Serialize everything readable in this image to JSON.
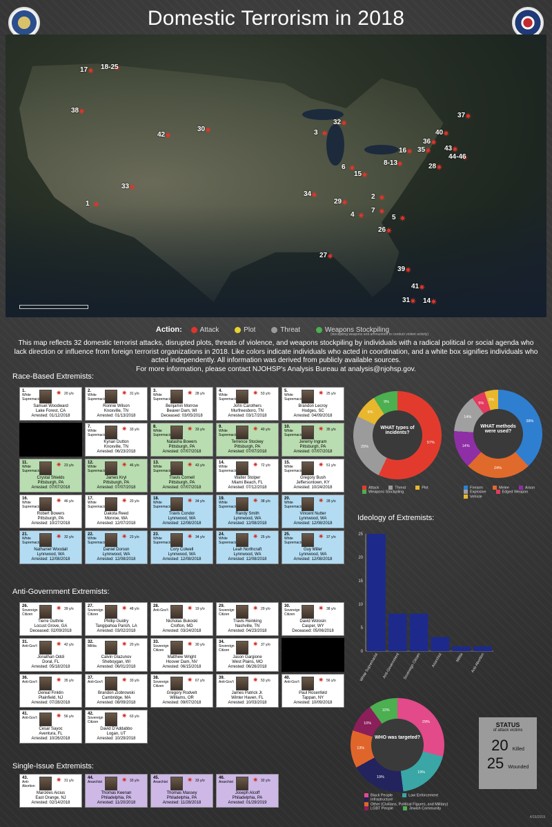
{
  "header": {
    "title": "Domestic Terrorism in 2018"
  },
  "map": {
    "markers": [
      "17",
      "18-25",
      "38",
      "1",
      "42",
      "30",
      "33",
      "3",
      "32",
      "37",
      "40",
      "36",
      "43",
      "35",
      "44-46",
      "28",
      "16",
      "8-13",
      "6",
      "15",
      "34",
      "29",
      "2",
      "4",
      "7",
      "5",
      "26",
      "27",
      "39",
      "41",
      "31",
      "14"
    ]
  },
  "legend": {
    "label": "Action:",
    "items": [
      "Attack",
      "Plot",
      "Threat",
      "Weapons Stockpiling"
    ],
    "note": "(stockpiling weapons and ammunition to conduct violent activity)"
  },
  "description": {
    "text": "This map reflects 32 domestic terrorist attacks, disrupted plots, threats of violence, and weapons stockpiling by individuals with a radical political or social agenda who lack direction or influence from foreign terrorist organizations in 2018. Like colors indicate individuals who acted in coordination, and a white box signifies individuals who acted independently. All information was derived from publicly available sources.",
    "contact": "For more information, please contact NJOHSP's Analysis Bureau at analysis@njohsp.gov."
  },
  "sections": {
    "race": "Race-Based Extremists:",
    "antigov": "Anti-Government Extremists:",
    "single": "Single-Issue Extremists:"
  },
  "cards": [
    {
      "n": "1.",
      "g": "White Supremacist",
      "a": "20 y/o",
      "name": "Samuel Woodward",
      "loc": "Lake Forest, CA",
      "st": "Arrested: 01/12/2018",
      "c": ""
    },
    {
      "n": "2.",
      "g": "White Supremacist",
      "a": "31 y/o",
      "name": "Ronnie Wilson",
      "loc": "Knoxville, TN",
      "st": "Arrested: 01/13/2018",
      "c": ""
    },
    {
      "n": "3.",
      "g": "White Supremacist",
      "a": "28 y/o",
      "name": "Benjamin Morrow",
      "loc": "Beaver Dam, WI",
      "st": "Deceased: 03/05/2018",
      "c": ""
    },
    {
      "n": "4.",
      "g": "White Supremacist",
      "a": "53 y/o",
      "name": "John Carothers",
      "loc": "Murfreesboro, TN",
      "st": "Arrested: 03/17/2018",
      "c": ""
    },
    {
      "n": "5.",
      "g": "White Supremacist",
      "a": "25 y/o",
      "name": "Brandon Lecroy",
      "loc": "Hodges, SC",
      "st": "Arrested: 04/09/2018",
      "c": ""
    },
    {
      "n": "",
      "g": "",
      "a": "",
      "name": "",
      "loc": "",
      "st": "",
      "c": "k"
    },
    {
      "n": "7.",
      "g": "White Supremacist",
      "a": "33 y/o",
      "name": "Kynan Dutton",
      "loc": "Knoxville, TN",
      "st": "Arrested: 06/23/2018",
      "c": ""
    },
    {
      "n": "8.",
      "g": "White Supremacist",
      "a": "33 y/o",
      "name": "Natasha Bowers",
      "loc": "Pittsburgh, PA",
      "st": "Arrested: 07/07/2018",
      "c": "g"
    },
    {
      "n": "9.",
      "g": "White Supremacist",
      "a": "40 y/o",
      "name": "Terrence Stockey",
      "loc": "Pittsburgh, PA",
      "st": "Arrested: 07/07/2018",
      "c": "g"
    },
    {
      "n": "10.",
      "g": "White Supremacist",
      "a": "35 y/o",
      "name": "Jeremy Ingram",
      "loc": "Pittsburgh, PA",
      "st": "Arrested: 07/07/2018",
      "c": "g"
    },
    {
      "n": "11.",
      "g": "White Supremacist",
      "a": "23 y/o",
      "name": "Crystal Shields",
      "loc": "Pittsburgh, PA",
      "st": "Arrested: 07/07/2018",
      "c": "g"
    },
    {
      "n": "12.",
      "g": "White Supremacist",
      "a": "46 y/o",
      "name": "James Kryl",
      "loc": "Pittsburgh, PA",
      "st": "Arrested: 07/07/2018",
      "c": "g"
    },
    {
      "n": "13.",
      "g": "White Supremacist",
      "a": "43 y/o",
      "name": "Travis Cornell",
      "loc": "Pittsburgh, PA",
      "st": "Arrested: 07/07/2018",
      "c": "g"
    },
    {
      "n": "14.",
      "g": "White Supremacist",
      "a": "72 y/o",
      "name": "Walter Stolper",
      "loc": "Miami Beach, FL",
      "st": "Arrested: 07/12/2018",
      "c": ""
    },
    {
      "n": "15.",
      "g": "White Supremacist",
      "a": "51 y/o",
      "name": "Gregory Bush",
      "loc": "Jeffersontown, KY",
      "st": "Arrested: 10/24/2018",
      "c": ""
    },
    {
      "n": "16.",
      "g": "White Supremacist",
      "a": "46 y/o",
      "name": "Robert Bowers",
      "loc": "Pittsburgh, PA",
      "st": "Arrested: 10/27/2018",
      "c": ""
    },
    {
      "n": "17.",
      "g": "White Supremacist",
      "a": "20 y/o",
      "name": "Dakota Reed",
      "loc": "Monroe, WA",
      "st": "Arrested: 12/07/2018",
      "c": ""
    },
    {
      "n": "18.",
      "g": "White Supremacist",
      "a": "34 y/o",
      "name": "Travis Condor",
      "loc": "Lynnwood, WA",
      "st": "Arrested: 12/08/2018",
      "c": "b"
    },
    {
      "n": "19.",
      "g": "White Supremacist",
      "a": "38 y/o",
      "name": "Randy Smith",
      "loc": "Lynnwood, WA",
      "st": "Arrested: 12/08/2018",
      "c": "b"
    },
    {
      "n": "20.",
      "g": "White Supremacist",
      "a": "28 y/o",
      "name": "Vincent Nutter",
      "loc": "Lynnwood, WA",
      "st": "Arrested: 12/08/2018",
      "c": "b"
    },
    {
      "n": "21.",
      "g": "White Supremacist",
      "a": "32 y/o",
      "name": "Nathaniel Woodall",
      "loc": "Lynnwood, WA",
      "st": "Arrested: 12/08/2018",
      "c": "b"
    },
    {
      "n": "22.",
      "g": "White Supremacist",
      "a": "23 y/o",
      "name": "Daniel Dorson",
      "loc": "Lynnwood, WA",
      "st": "Arrested: 12/08/2018",
      "c": "b"
    },
    {
      "n": "23.",
      "g": "White Supremacist",
      "a": "34 y/o",
      "name": "Cory Colwell",
      "loc": "Lynnwood, WA",
      "st": "Arrested: 12/08/2018",
      "c": "b"
    },
    {
      "n": "24.",
      "g": "White Supremacist",
      "a": "25 y/o",
      "name": "Leah Northcraft",
      "loc": "Lynnwood, WA",
      "st": "Arrested: 12/08/2018",
      "c": "b"
    },
    {
      "n": "25.",
      "g": "White Supremacist",
      "a": "37 y/o",
      "name": "Guy Miller",
      "loc": "Lynnwood, WA",
      "st": "Arrested: 12/08/2018",
      "c": "b"
    }
  ],
  "cards2": [
    {
      "n": "26.",
      "g": "Sovereign Citizen",
      "a": "39 y/o",
      "name": "Tierre Guthrie",
      "loc": "Locust Grove, GA",
      "st": "Deceased: 02/09/2018",
      "c": ""
    },
    {
      "n": "27.",
      "g": "Sovereign Citizen",
      "a": "48 y/o",
      "name": "Phillip Guidry",
      "loc": "Tangipahoa Parish, LA",
      "st": "Arrested: 03/02/2018",
      "c": ""
    },
    {
      "n": "28.",
      "g": "Anti-Gov't",
      "a": "19 y/o",
      "name": "Nicholas Bukoski",
      "loc": "Crofton, MD",
      "st": "Arrested: 03/24/2018",
      "c": ""
    },
    {
      "n": "29.",
      "g": "Sovereign Citizen",
      "a": "29 y/o",
      "name": "Travis Reinking",
      "loc": "Nashville, TN",
      "st": "Arrested: 04/23/2018",
      "c": ""
    },
    {
      "n": "30.",
      "g": "Sovereign Citizen",
      "a": "38 y/o",
      "name": "David Wolosin",
      "loc": "Casper, WY",
      "st": "Deceased: 05/06/2018",
      "c": ""
    },
    {
      "n": "31.",
      "g": "Anti-Gov't",
      "a": "42 y/o",
      "name": "Jonathan Oddi",
      "loc": "Doral, FL",
      "st": "Arrested: 05/18/2018",
      "c": ""
    },
    {
      "n": "32.",
      "g": "Militia",
      "a": "20 y/o",
      "name": "Calvin Glazunov",
      "loc": "Sheboygan, WI",
      "st": "Arrested: 06/01/2018",
      "c": ""
    },
    {
      "n": "33.",
      "g": "Sovereign Citizen",
      "a": "30 y/o",
      "name": "Matthew Wright",
      "loc": "Hoover Dam, NV",
      "st": "Arrested: 06/15/2018",
      "c": ""
    },
    {
      "n": "34.",
      "g": "Sovereign Citizen",
      "a": "37 y/o",
      "name": "Jason Gargione",
      "loc": "West Plains, MO",
      "st": "Arrested: 06/26/2018",
      "c": ""
    },
    {
      "n": "",
      "g": "",
      "a": "",
      "name": "",
      "loc": "",
      "st": "",
      "c": "k"
    },
    {
      "n": "36.",
      "g": "Anti-Gov't",
      "a": "35 y/o",
      "name": "Dereal Finklin",
      "loc": "Plainfield, NJ",
      "st": "Arrested: 07/28/2018",
      "c": ""
    },
    {
      "n": "37.",
      "g": "Anti-Gov't",
      "a": "33 y/o",
      "name": "Brandon Ziobrowski",
      "loc": "Cambridge, MA",
      "st": "Arrested: 08/09/2018",
      "c": ""
    },
    {
      "n": "38.",
      "g": "Sovereign Citizen",
      "a": "67 y/o",
      "name": "Gregory Rodvelt",
      "loc": "Williams, OR",
      "st": "Arrested: 09/07/2018",
      "c": ""
    },
    {
      "n": "39.",
      "g": "Anti-Gov't",
      "a": "53 y/o",
      "name": "James Patrick Jr.",
      "loc": "Winter Haven, FL",
      "st": "Arrested: 10/03/2018",
      "c": ""
    },
    {
      "n": "40.",
      "g": "Anti-Gov't",
      "a": "56 y/o",
      "name": "Paul Rosenfeld",
      "loc": "Tappan, NY",
      "st": "Arrested: 10/09/2018",
      "c": ""
    },
    {
      "n": "41.",
      "g": "Anti-Gov't",
      "a": "56 y/o",
      "name": "Cesar Sayoc",
      "loc": "Aventura, FL",
      "st": "Arrested: 10/26/2018",
      "c": ""
    },
    {
      "n": "42.",
      "g": "Sovereign Citizen",
      "a": "63 y/o",
      "name": "David D'Addabbo",
      "loc": "Logan, UT",
      "st": "Arrested: 10/29/2018",
      "c": ""
    }
  ],
  "cards3": [
    {
      "n": "43.",
      "g": "Anti-Abortion",
      "a": "31 y/o",
      "name": "Marckles Aicius",
      "loc": "East Orange, NJ",
      "st": "Arrested: 02/14/2018",
      "c": ""
    },
    {
      "n": "44.",
      "g": "Anarchist",
      "a": "33 y/o",
      "name": "Thomas Keenan",
      "loc": "Philadelphia, PA",
      "st": "Arrested: 11/20/2018",
      "c": "p"
    },
    {
      "n": "45.",
      "g": "Anarchist",
      "a": "33 y/o",
      "name": "Thomas Massey",
      "loc": "Philadelphia, PA",
      "st": "Arrested: 11/28/2018",
      "c": "p"
    },
    {
      "n": "46.",
      "g": "Anarchist",
      "a": "32 y/o",
      "name": "Joseph Alcoff",
      "loc": "Philadelphia, PA",
      "st": "Arrested: 01/29/2019",
      "c": "p"
    }
  ],
  "donut1": {
    "label": "WHAT types of incidents?",
    "values": [
      57,
      25,
      9,
      9
    ],
    "labels": [
      "57%",
      "25%",
      "9%",
      "9%"
    ],
    "colors": [
      "#e23b2e",
      "#9b9b9b",
      "#e8b72e",
      "#4caf50"
    ],
    "legend": [
      "Attack",
      "Threat",
      "Plot",
      "Weapons Stockpiling"
    ]
  },
  "donut2": {
    "label": "WHAT methods were used?",
    "values": [
      38,
      24,
      14,
      14,
      5,
      5
    ],
    "labels": [
      "38%",
      "24%",
      "14%",
      "14%",
      "5%",
      "5%"
    ],
    "colors": [
      "#2f7fd1",
      "#e06a2b",
      "#8e2fa6",
      "#a0a0a0",
      "#e23b5d",
      "#e8b72e"
    ],
    "legend": [
      "Firearm",
      "Melee",
      "Arson",
      "Explosive",
      "Edged Weapon",
      "Vehicle"
    ]
  },
  "chart_data": {
    "type": "bar",
    "title": "Ideology of Extremists:",
    "categories": [
      "White Supremacist",
      "Anti-Government",
      "Sovereign Citizen",
      "Anarchist",
      "Militia",
      "Anti-Abortion"
    ],
    "values": [
      25,
      8,
      8,
      3,
      1,
      1
    ],
    "ylim": [
      0,
      25
    ],
    "yticks": [
      "0",
      "5",
      "10",
      "15",
      "20",
      "25"
    ]
  },
  "donut3": {
    "label": "WHO was targeted?",
    "values": [
      29,
      19,
      19,
      13,
      10,
      10
    ],
    "labels": [
      "29%",
      "19%",
      "19%",
      "13%",
      "10%",
      "10%"
    ],
    "colors": [
      "#e24a8a",
      "#3aa6a6",
      "#23235e",
      "#e0652b",
      "#8a1f5a",
      "#4caf50"
    ],
    "legend": [
      "Black People",
      "Law Enforcement",
      "Infrastructure",
      "Other (Civilians, Political Figures, and Military)",
      "LGBT People",
      "Jewish Community"
    ]
  },
  "status": {
    "title": "STATUS",
    "subtitle": "of attack victims",
    "killed_n": "20",
    "killed": "Killed",
    "wounded_n": "25",
    "wounded": "Wounded"
  },
  "footer": {
    "date": "4/15/2019"
  }
}
